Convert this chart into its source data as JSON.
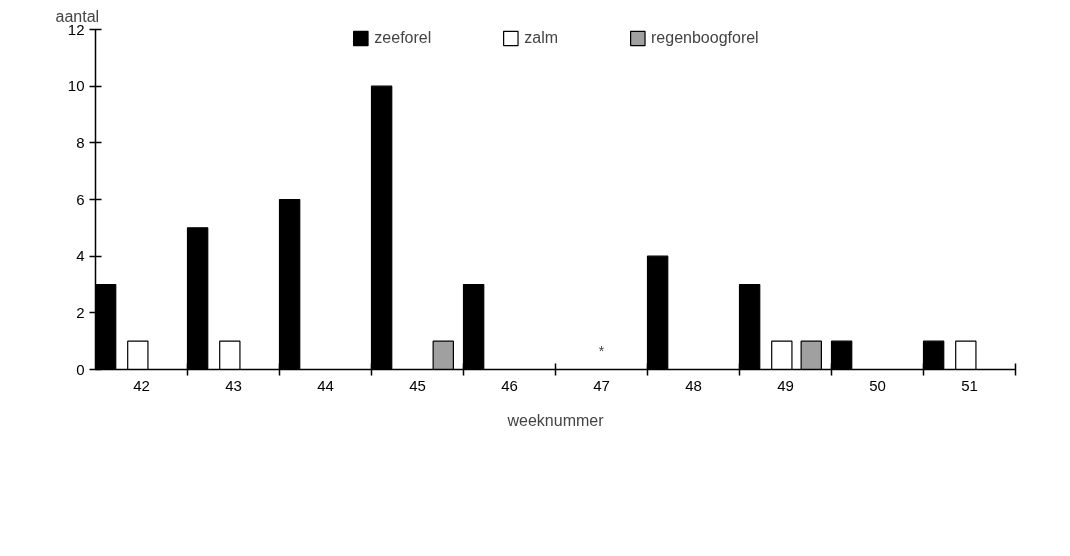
{
  "chart_data": {
    "type": "bar",
    "xlabel": "weeknummer",
    "ylabel": "aantal",
    "categories": [
      "42",
      "43",
      "44",
      "45",
      "46",
      "47",
      "48",
      "49",
      "50",
      "51"
    ],
    "series": [
      {
        "name": "zeeforel",
        "color": "#000000",
        "values": [
          3,
          5,
          6,
          10,
          3,
          null,
          4,
          3,
          1,
          1
        ]
      },
      {
        "name": "zalm",
        "color": "#ffffff",
        "values": [
          1,
          1,
          null,
          null,
          null,
          null,
          null,
          1,
          null,
          1
        ]
      },
      {
        "name": "regenboogforel",
        "color": "#a0a0a0",
        "values": [
          null,
          null,
          null,
          1,
          null,
          null,
          null,
          1,
          null,
          null
        ]
      }
    ],
    "ylim": [
      0,
      12
    ],
    "yticks": [
      0,
      2,
      4,
      6,
      8,
      10,
      12
    ],
    "grid": false,
    "legend": "top",
    "annotations": [
      "*"
    ]
  }
}
